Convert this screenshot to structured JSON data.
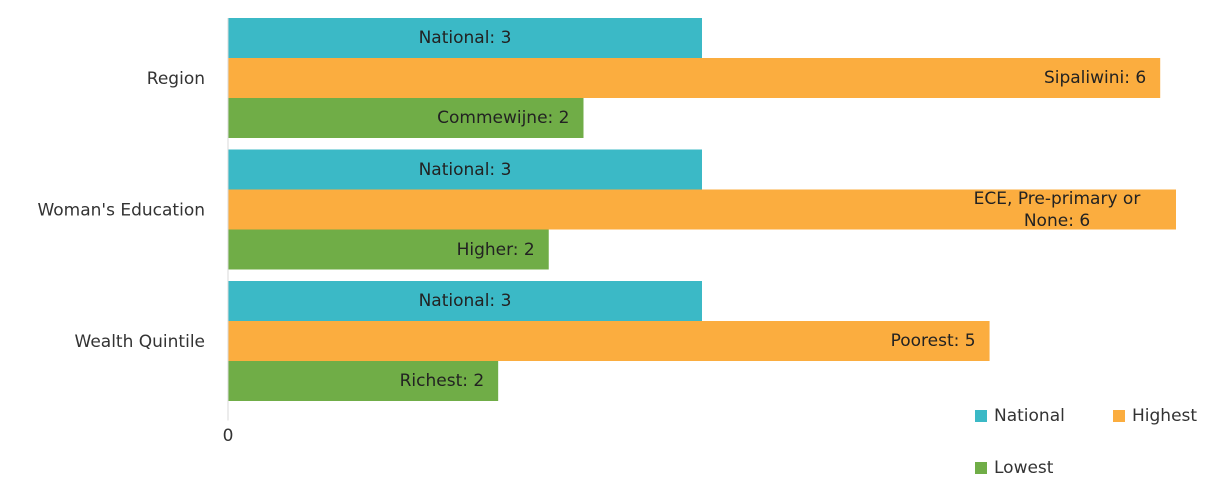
{
  "chart_data": {
    "type": "bar",
    "orientation": "horizontal",
    "categories": [
      "Region",
      "Woman's Education",
      "Wealth Quintile"
    ],
    "series": [
      {
        "name": "National",
        "color": "#3bb9c6",
        "values": [
          3,
          3,
          3
        ],
        "value_labels": [
          "National: 3",
          "National: 3",
          "National: 3"
        ]
      },
      {
        "name": "Highest",
        "color": "#fbad3f",
        "values": [
          5.9,
          6.0,
          4.82
        ],
        "value_labels": [
          "Sipaliwini: 6",
          "ECE, Pre-primary or None: 6",
          "Poorest: 5"
        ]
      },
      {
        "name": "Lowest",
        "color": "#70ad47",
        "values": [
          2.25,
          2.03,
          1.71
        ],
        "value_labels": [
          "Commewijne: 2",
          "Higher: 2",
          "Richest: 2"
        ]
      }
    ],
    "xlim": [
      0,
      6
    ],
    "xticks": [
      0
    ],
    "legend": "bottom-right"
  }
}
